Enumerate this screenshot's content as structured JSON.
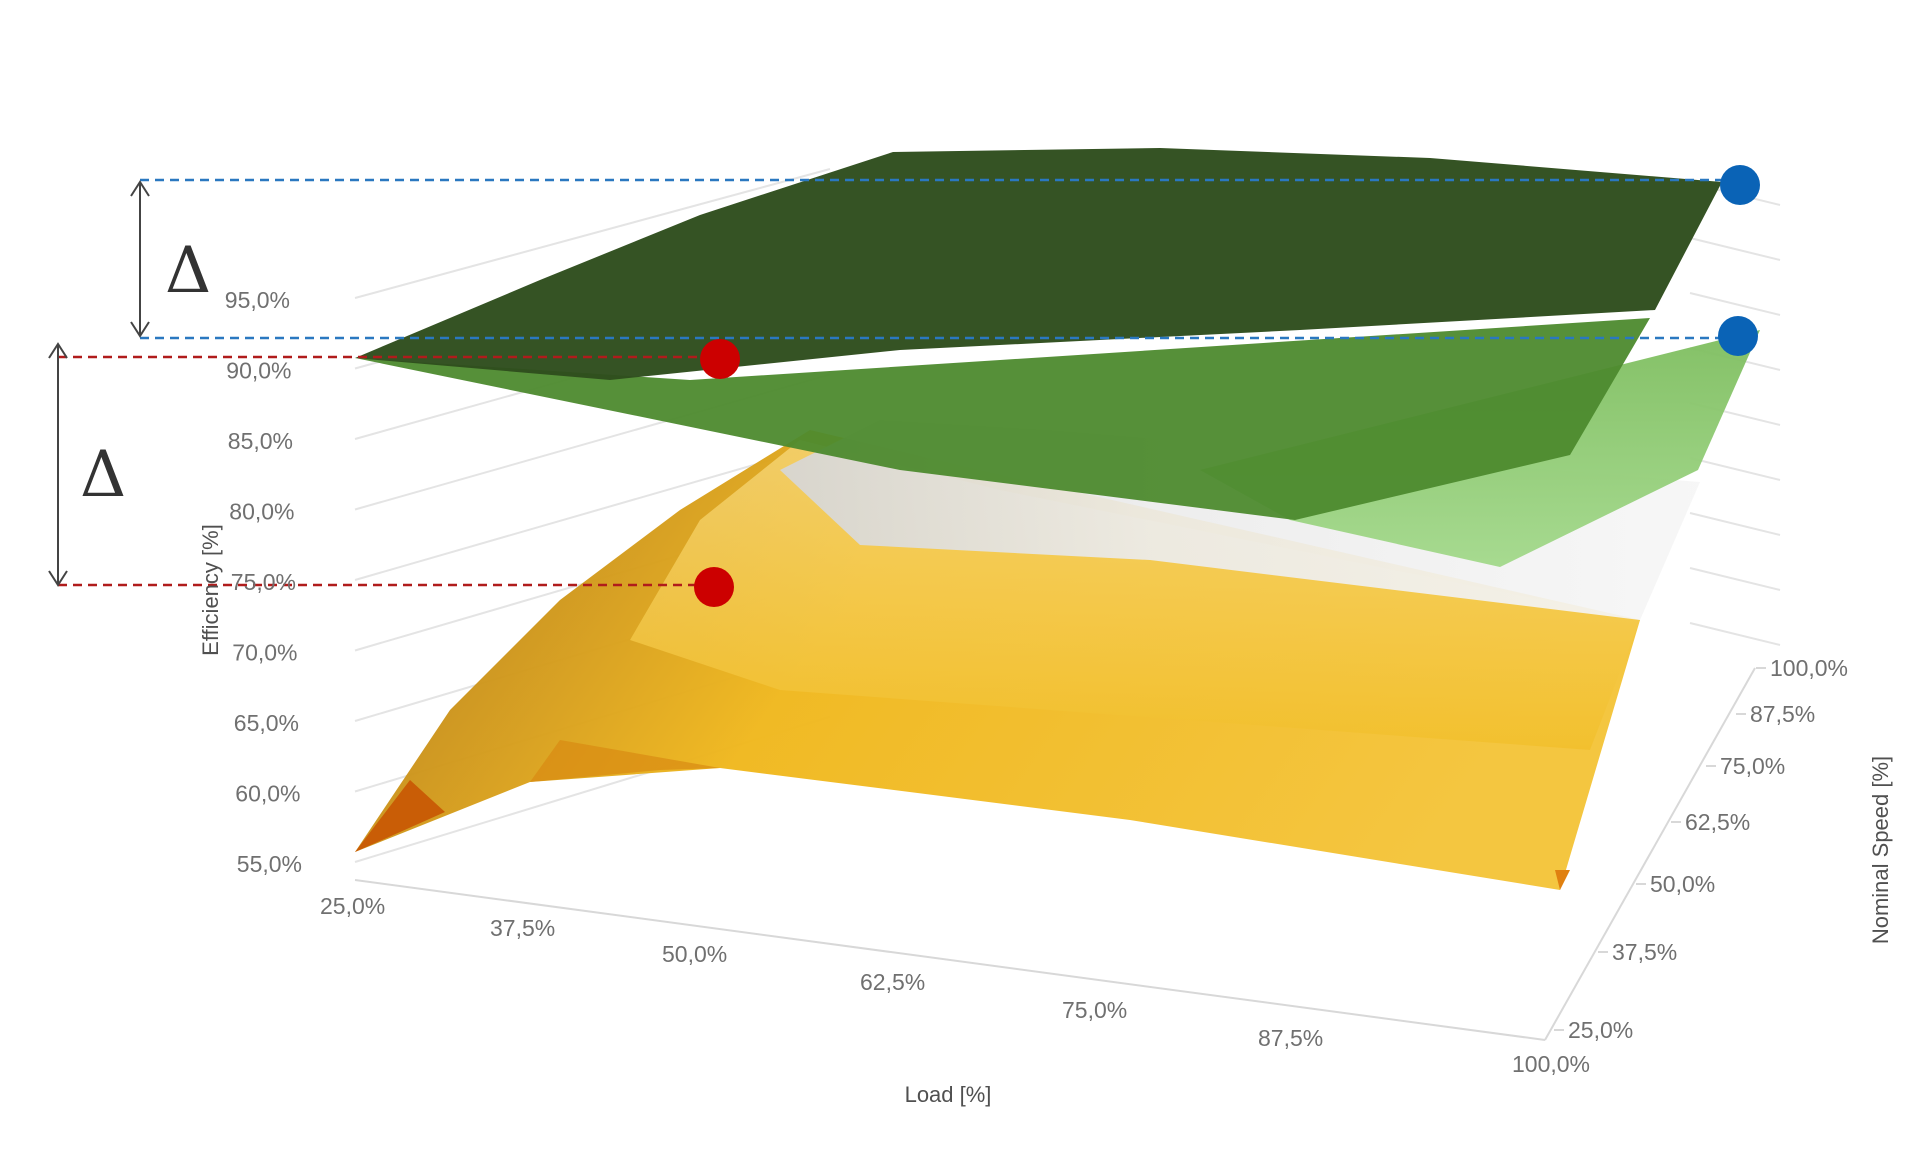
{
  "chart_data": {
    "type": "surface3d",
    "xlabel": "Load [%]",
    "ylabel": "Efficiency [%]",
    "zlabel": "Nominal Speed [%]",
    "x_ticks": [
      "25,0%",
      "37,5%",
      "50,0%",
      "62,5%",
      "75,0%",
      "87,5%",
      "100,0%"
    ],
    "y_ticks": [
      "55,0%",
      "60,0%",
      "65,0%",
      "70,0%",
      "75,0%",
      "80,0%",
      "85,0%",
      "90,0%",
      "95,0%"
    ],
    "z_ticks": [
      "25,0%",
      "37,5%",
      "50,0%",
      "62,5%",
      "75,0%",
      "87,5%",
      "100,0%"
    ],
    "ylim": [
      55,
      97
    ],
    "colors": {
      "dark_green": "#2e4d1d",
      "mid_green": "#4d8a2e",
      "light_green": "#8fcc6e",
      "yellow": "#f2bf24",
      "orange": "#c85a05",
      "red_marker": "#cc0000",
      "blue_marker": "#0a63b6",
      "blue_dash": "#2a78c0",
      "red_dash": "#b01c1c"
    },
    "annotations": [
      {
        "type": "delta",
        "symbol": "Δ",
        "color": "blue"
      },
      {
        "type": "delta",
        "symbol": "Δ",
        "color": "red"
      }
    ]
  }
}
